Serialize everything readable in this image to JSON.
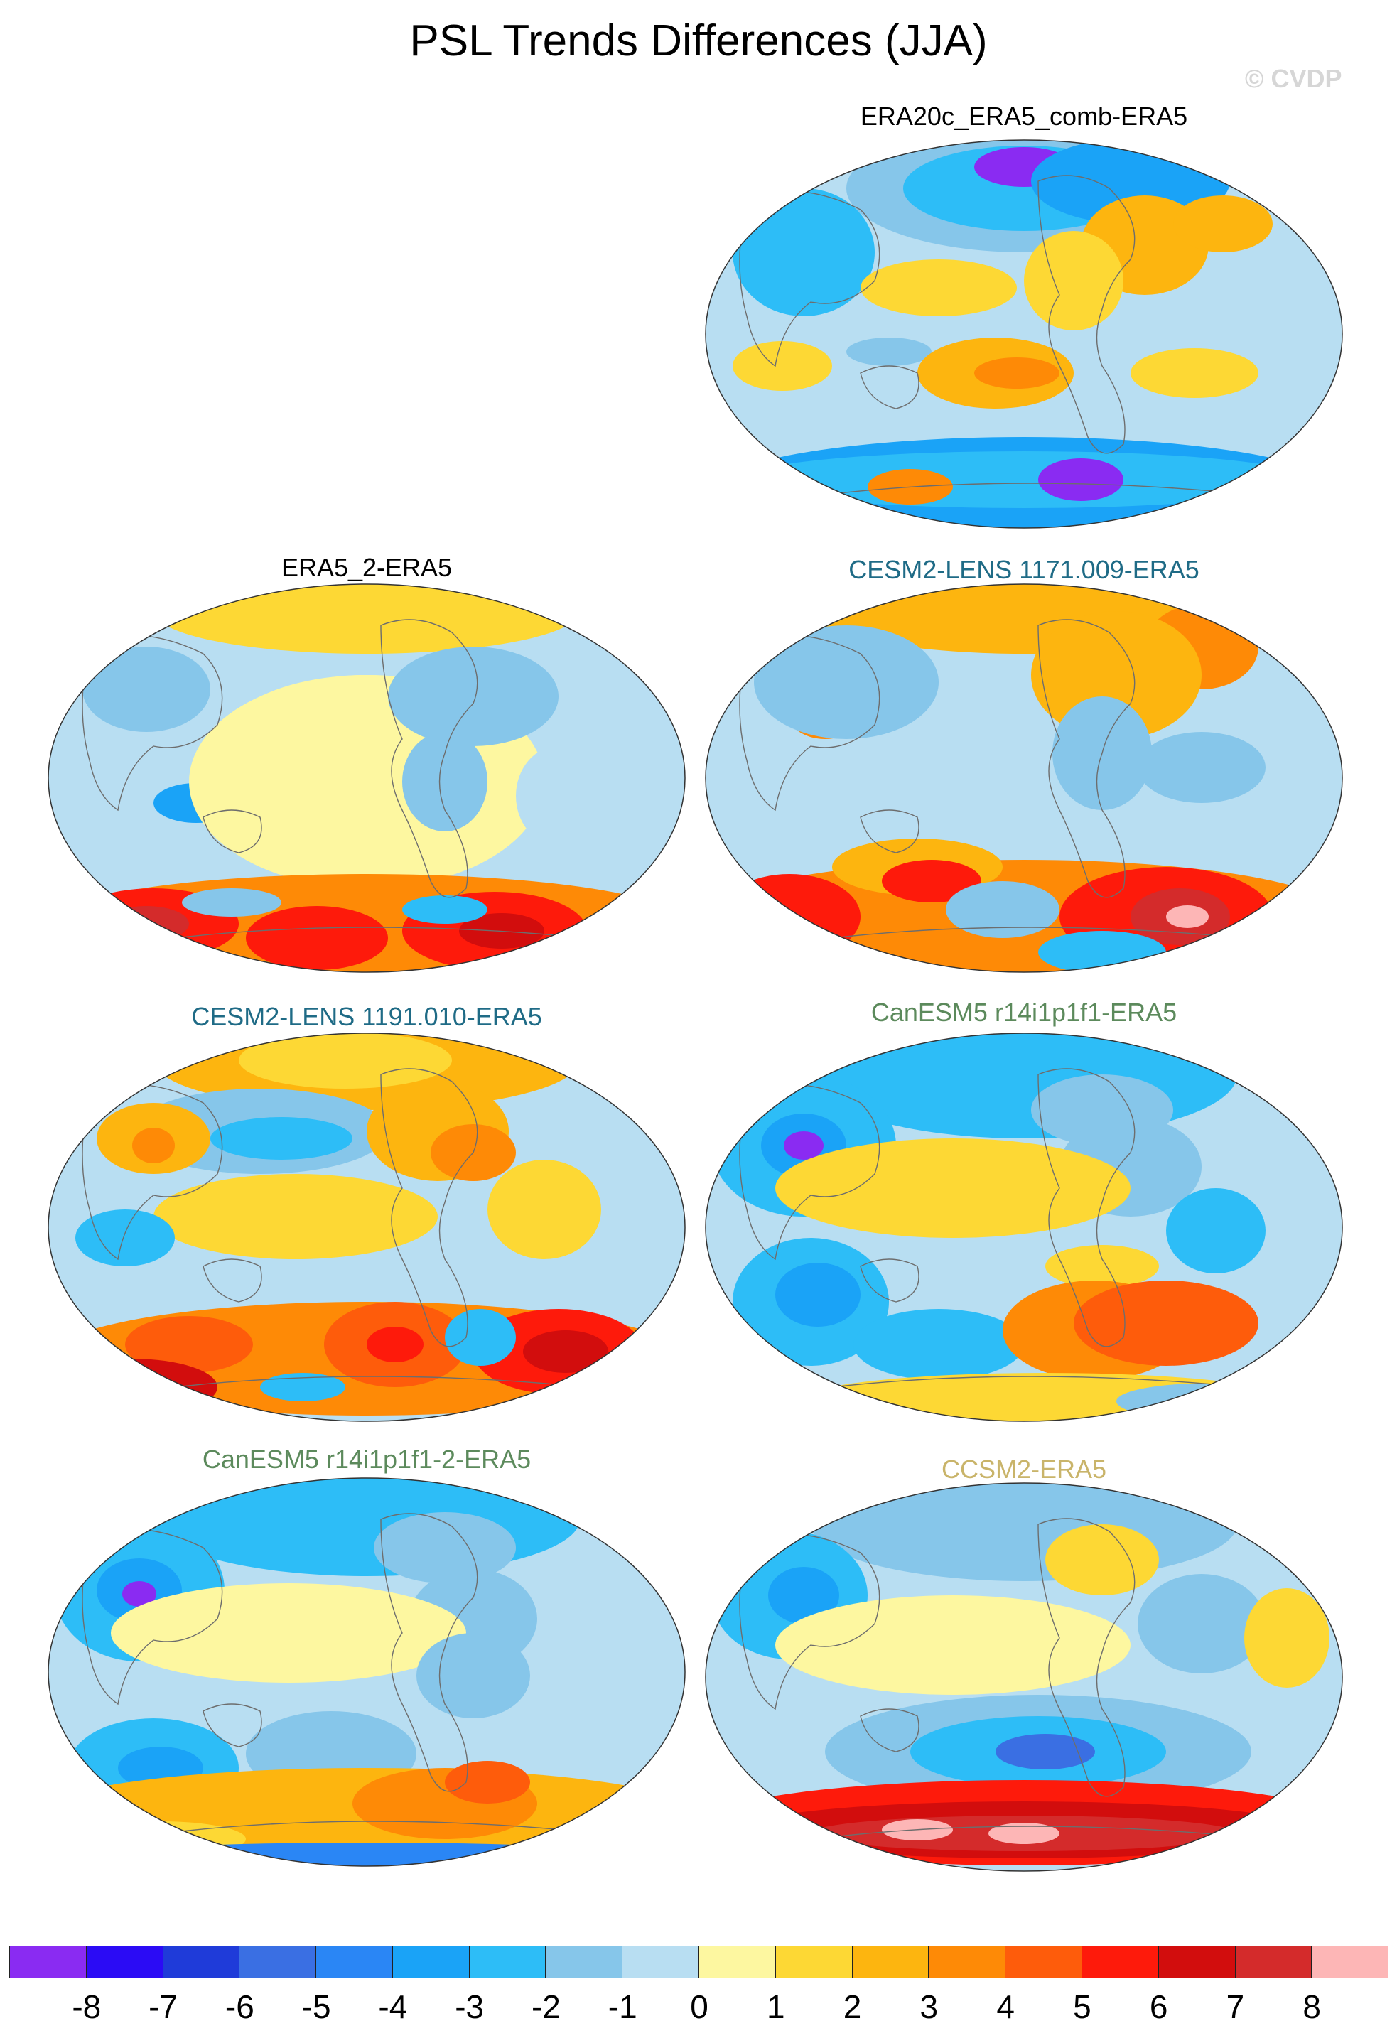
{
  "title": "PSL Trends Differences (JJA)",
  "watermark": "© CVDP",
  "panels": [
    {
      "label": "ERA20c_ERA5_comb-ERA5",
      "label_color": "#000000",
      "pattern": "era20c"
    },
    {
      "label": "ERA5_2-ERA5",
      "label_color": "#000000",
      "pattern": "era5_2"
    },
    {
      "label": "CESM2-LENS 1171.009-ERA5",
      "label_color": "#1f6b86",
      "pattern": "cesm_1171"
    },
    {
      "label": "CESM2-LENS 1191.010-ERA5",
      "label_color": "#1f6b86",
      "pattern": "cesm_1191"
    },
    {
      "label": "CanESM5 r14i1p1f1-ERA5",
      "label_color": "#5c8a5c",
      "pattern": "canesm"
    },
    {
      "label": "CanESM5 r14i1p1f1-2-ERA5",
      "label_color": "#5c8a5c",
      "pattern": "canesm2"
    },
    {
      "label": "CCSM2-ERA5",
      "label_color": "#c9b46a",
      "pattern": "ccsm2"
    }
  ],
  "colorbar": {
    "colors": [
      "#8a2bf2",
      "#2b0bf5",
      "#1f3bd9",
      "#3a6fe3",
      "#2a86f5",
      "#1aa3f7",
      "#2dbdf7",
      "#86c6ea",
      "#b8def2",
      "#fdf7a0",
      "#fdd834",
      "#fdb50f",
      "#fe8a06",
      "#fe5c0b",
      "#fe1a0b",
      "#d20d0d",
      "#d42b2b",
      "#fdb6b6"
    ],
    "ticks": [
      "-8",
      "-7",
      "-6",
      "-5",
      "-4",
      "-3",
      "-2",
      "-1",
      "0",
      "1",
      "2",
      "3",
      "4",
      "5",
      "6",
      "7",
      "8"
    ]
  }
}
